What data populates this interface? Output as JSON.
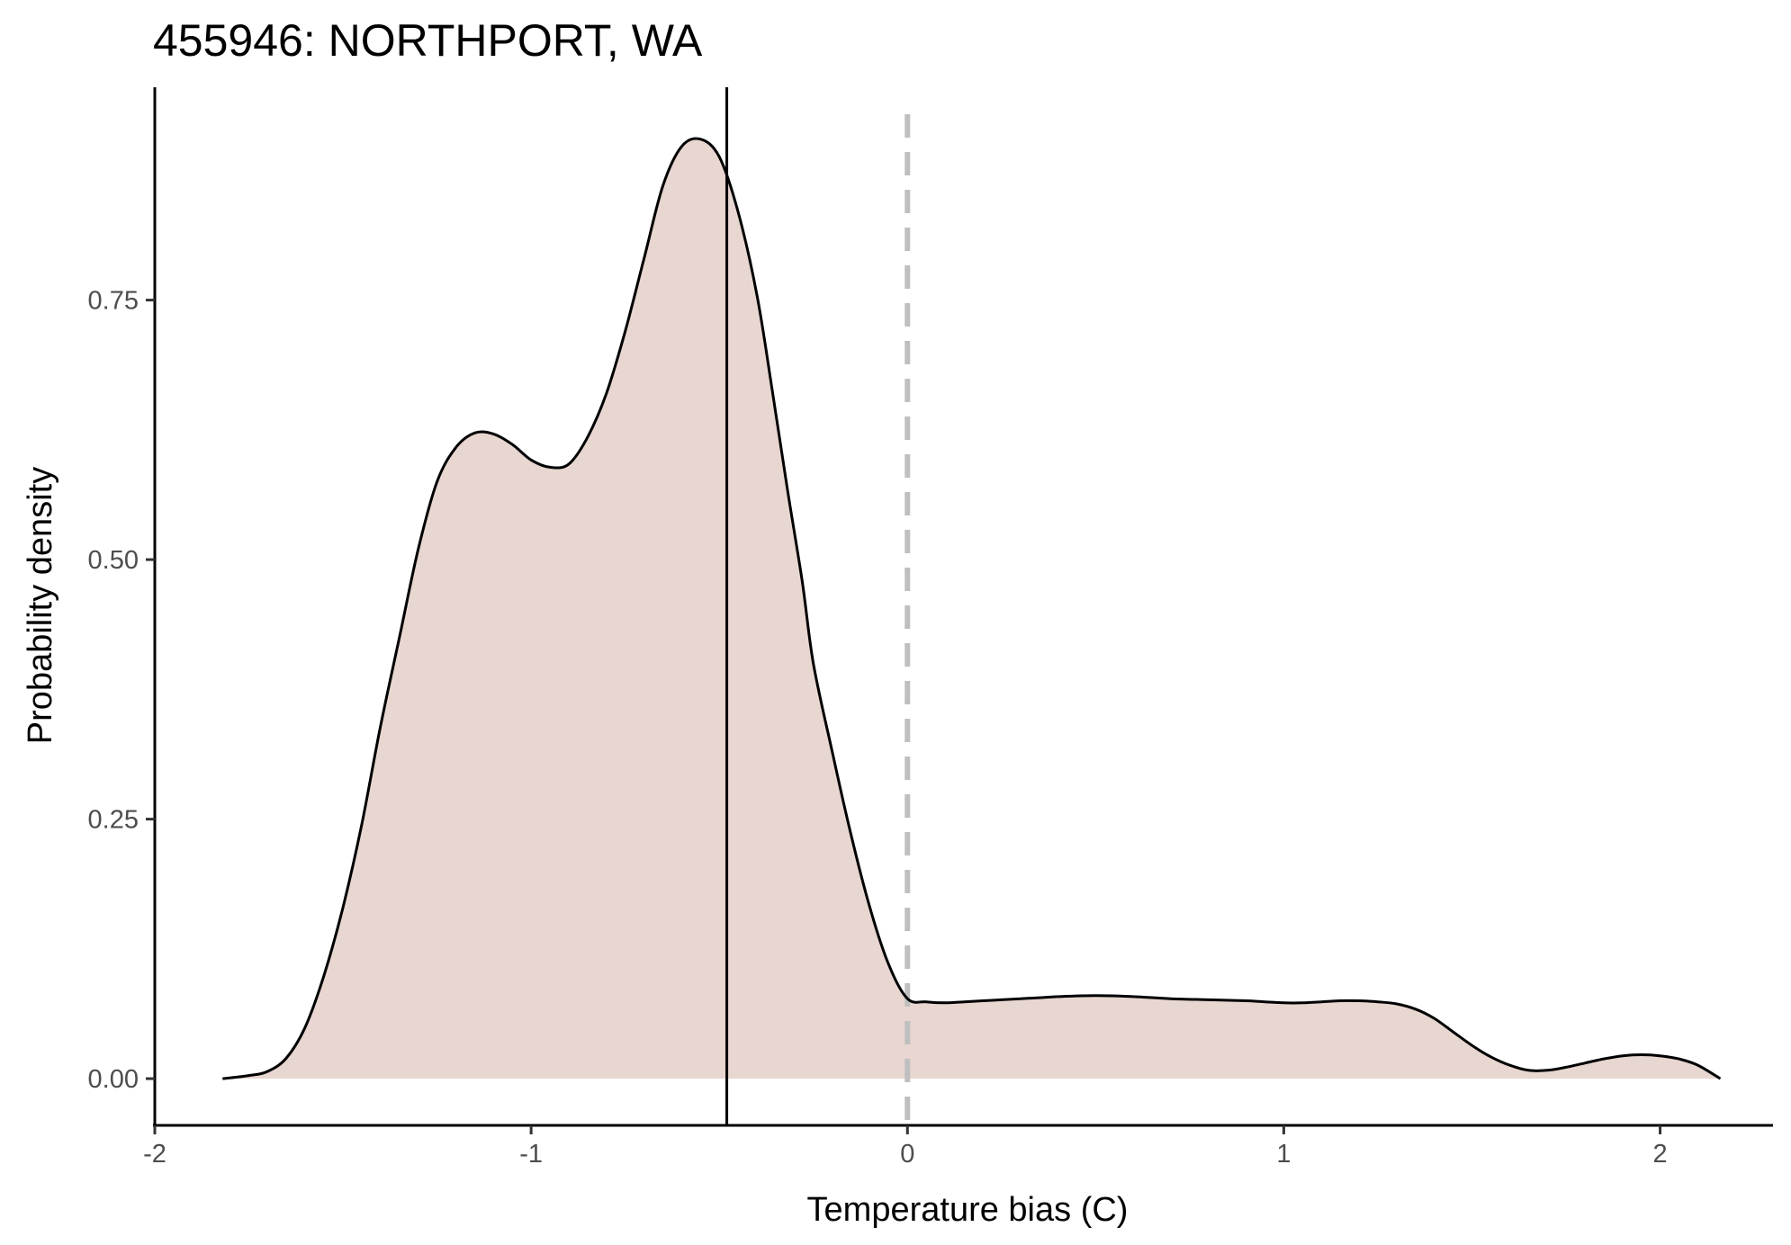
{
  "chart_data": {
    "type": "area",
    "title": "455946: NORTHPORT, WA",
    "xlabel": "Temperature bias (C)",
    "ylabel": "Probability density",
    "xlim": [
      -2.0,
      2.3
    ],
    "ylim": [
      -0.045,
      0.955
    ],
    "x_ticks": [
      -2,
      -1,
      0,
      1,
      2
    ],
    "x_tick_labels": [
      "-2",
      "-1",
      "0",
      "1",
      "2"
    ],
    "y_ticks": [
      0,
      0.25,
      0.5,
      0.75
    ],
    "y_tick_labels": [
      "0.00",
      "0.25",
      "0.50",
      "0.75"
    ],
    "grid": false,
    "legend": "none",
    "fill_color": "#e8d6d1",
    "line_color": "#000000",
    "mean_line": {
      "x": -0.48,
      "color": "#000000",
      "style": "solid"
    },
    "zero_line": {
      "x": 0.0,
      "color": "#bfbfbf",
      "style": "dashed"
    },
    "series": [
      {
        "x": [
          -1.82,
          -1.75,
          -1.7,
          -1.65,
          -1.6,
          -1.55,
          -1.5,
          -1.45,
          -1.4,
          -1.35,
          -1.3,
          -1.25,
          -1.2,
          -1.15,
          -1.1,
          -1.05,
          -1.0,
          -0.95,
          -0.9,
          -0.85,
          -0.8,
          -0.75,
          -0.7,
          -0.65,
          -0.6,
          -0.55,
          -0.5,
          -0.45,
          -0.4,
          -0.36,
          -0.32,
          -0.28,
          -0.25,
          -0.2,
          -0.15,
          -0.1,
          -0.05,
          0.0,
          0.05,
          0.1,
          0.15,
          0.2,
          0.25,
          0.3,
          0.35,
          0.4,
          0.5,
          0.6,
          0.7,
          0.8,
          0.9,
          0.95,
          1.0,
          1.05,
          1.1,
          1.15,
          1.2,
          1.25,
          1.3,
          1.35,
          1.4,
          1.45,
          1.5,
          1.55,
          1.6,
          1.65,
          1.7,
          1.75,
          1.8,
          1.85,
          1.9,
          1.95,
          2.0,
          2.05,
          2.1,
          2.16
        ],
        "y": [
          0.0,
          0.003,
          0.007,
          0.02,
          0.05,
          0.1,
          0.165,
          0.245,
          0.34,
          0.425,
          0.51,
          0.575,
          0.608,
          0.622,
          0.621,
          0.611,
          0.596,
          0.589,
          0.592,
          0.618,
          0.66,
          0.72,
          0.79,
          0.86,
          0.898,
          0.905,
          0.888,
          0.835,
          0.755,
          0.665,
          0.57,
          0.48,
          0.4,
          0.315,
          0.235,
          0.165,
          0.11,
          0.077,
          0.074,
          0.073,
          0.074,
          0.075,
          0.076,
          0.077,
          0.078,
          0.079,
          0.08,
          0.079,
          0.077,
          0.076,
          0.075,
          0.074,
          0.073,
          0.073,
          0.074,
          0.075,
          0.075,
          0.074,
          0.072,
          0.067,
          0.058,
          0.045,
          0.032,
          0.021,
          0.013,
          0.008,
          0.008,
          0.011,
          0.015,
          0.019,
          0.022,
          0.023,
          0.022,
          0.019,
          0.013,
          0.0
        ]
      }
    ]
  }
}
